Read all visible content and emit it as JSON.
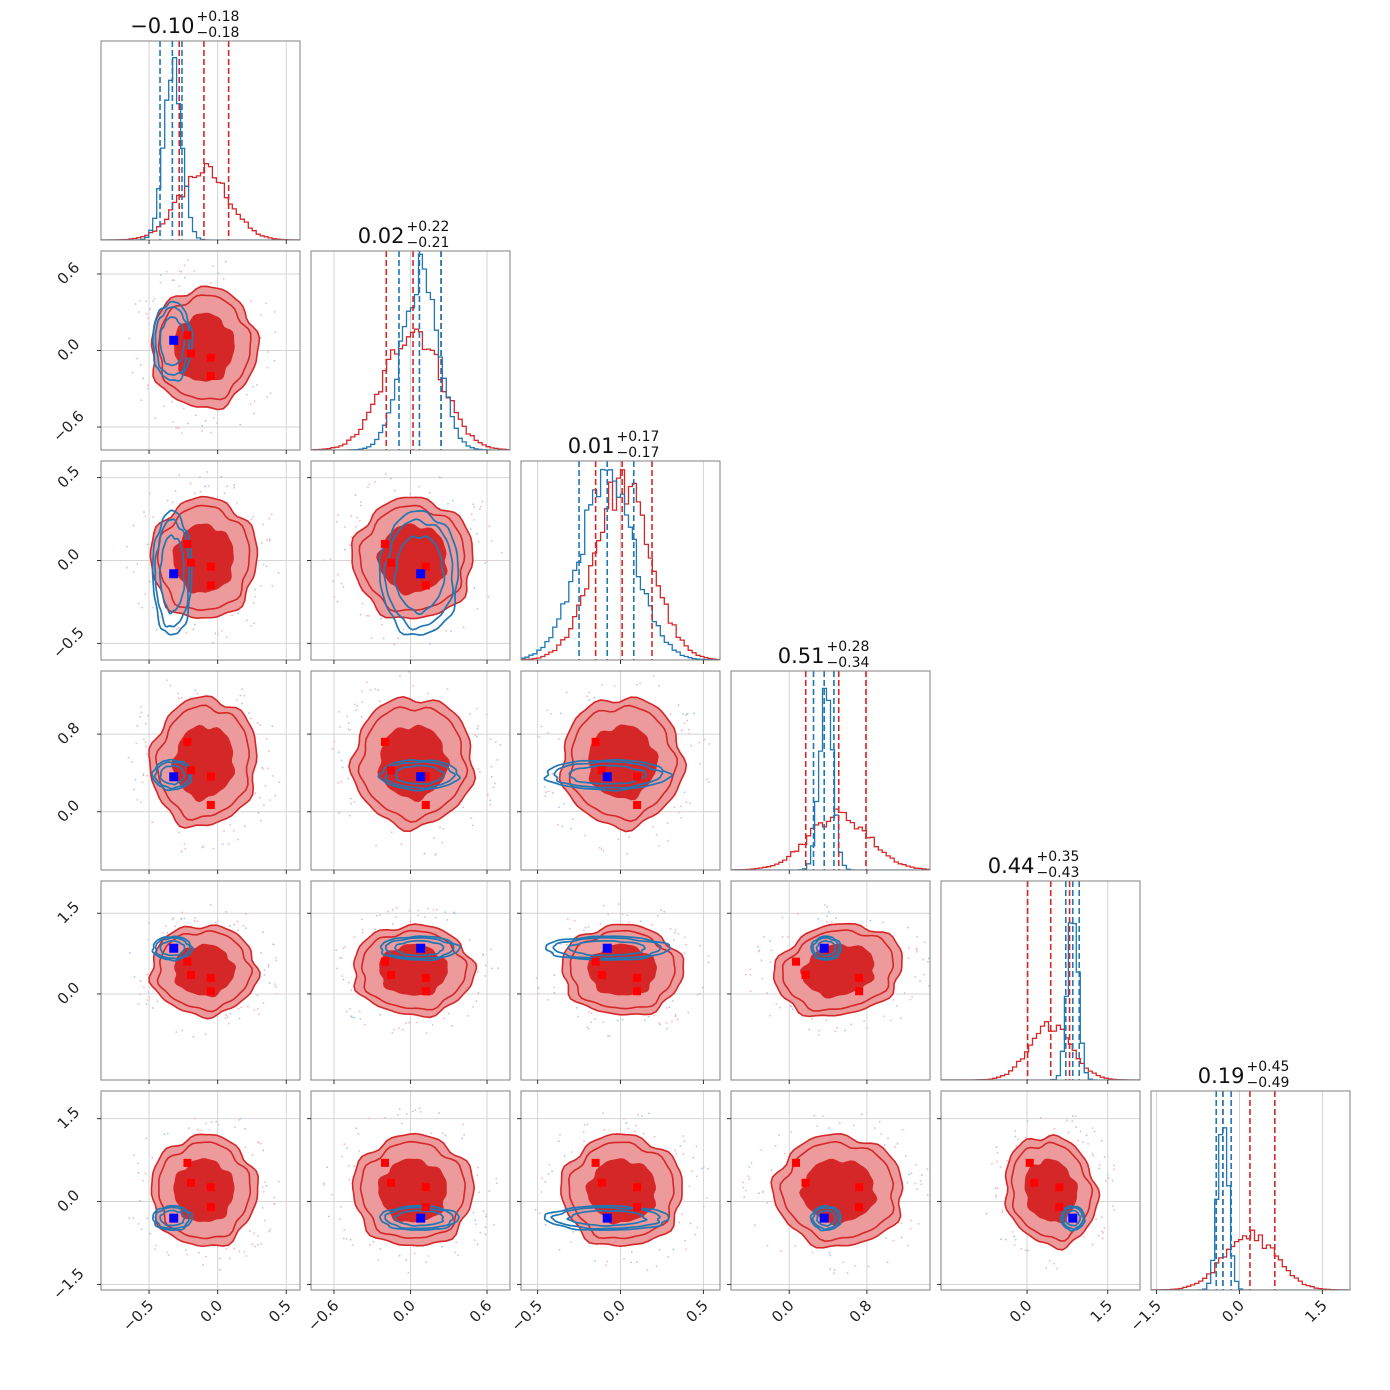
{
  "figure_type": "corner-plot",
  "colors": {
    "red_series": "#d62728",
    "red_fill_inner": "#d62728",
    "red_fill_outer": "#ec9a9b",
    "blue_series": "#1f77b4",
    "red_marker": "#ff0000",
    "blue_marker": "#0000ff"
  },
  "chart_data": {
    "type": "corner",
    "grid": true,
    "series": [
      {
        "color": "#d62728",
        "style": "filled-contour-and-histogram"
      },
      {
        "color": "#1f77b4",
        "style": "line-contour-and-histogram"
      }
    ],
    "parameters": [
      {
        "index": 0,
        "title_value": "−0.10",
        "title_plus": "+0.18",
        "title_minus": "−0.18",
        "range": [
          -0.85,
          0.6
        ],
        "ticks": [
          -0.5,
          0.0,
          0.5
        ],
        "tick_labels": [
          "−0.5",
          "0.0",
          "0.5"
        ],
        "red_hist": {
          "mean": -0.1,
          "sd": 0.18,
          "quantiles": [
            -0.28,
            -0.1,
            0.08
          ]
        },
        "blue_hist": {
          "mean": -0.33,
          "sd": 0.065,
          "quantiles": [
            -0.42,
            -0.33,
            -0.26
          ]
        },
        "truth_red": [
          -0.22,
          -0.05
        ],
        "truth_blue": -0.32
      },
      {
        "index": 1,
        "title_value": "0.02",
        "title_plus": "+0.22",
        "title_minus": "−0.21",
        "range": [
          -0.78,
          0.78
        ],
        "ticks": [
          -0.6,
          0.0,
          0.6
        ],
        "tick_labels": [
          "−0.6",
          "0.0",
          "0.6"
        ],
        "red_hist": {
          "mean": 0.02,
          "sd": 0.22,
          "quantiles": [
            -0.19,
            0.02,
            0.24
          ]
        },
        "blue_hist": {
          "mean": 0.07,
          "sd": 0.14,
          "quantiles": [
            -0.09,
            0.07,
            0.24
          ]
        },
        "truth_red": [
          -0.2,
          0.12
        ],
        "truth_blue": 0.08
      },
      {
        "index": 2,
        "title_value": "0.01",
        "title_plus": "+0.17",
        "title_minus": "−0.17",
        "range": [
          -0.6,
          0.6
        ],
        "ticks": [
          -0.5,
          0.0,
          0.5
        ],
        "tick_labels": [
          "−0.5",
          "0.0",
          "0.5"
        ],
        "red_hist": {
          "mean": 0.01,
          "sd": 0.17,
          "quantiles": [
            -0.15,
            0.01,
            0.19
          ]
        },
        "blue_hist": {
          "mean": -0.08,
          "sd": 0.17,
          "quantiles": [
            -0.25,
            -0.08,
            0.08
          ]
        },
        "truth_red": [
          -0.15,
          0.1
        ],
        "truth_blue": -0.08
      },
      {
        "index": 3,
        "title_value": "0.51",
        "title_plus": "+0.28",
        "title_minus": "−0.34",
        "range": [
          -0.6,
          1.45
        ],
        "ticks": [
          0.0,
          0.8
        ],
        "tick_labels": [
          "0.0",
          "0.8"
        ],
        "red_hist": {
          "mean": 0.51,
          "sd": 0.31,
          "quantiles": [
            0.17,
            0.51,
            0.79
          ]
        },
        "blue_hist": {
          "mean": 0.38,
          "sd": 0.07,
          "quantiles": [
            0.25,
            0.36,
            0.46
          ]
        },
        "truth_red": [
          0.07,
          0.72
        ],
        "truth_blue": 0.36
      },
      {
        "index": 4,
        "title_value": "0.44",
        "title_plus": "+0.35",
        "title_minus": "−0.43",
        "range": [
          -1.6,
          2.1
        ],
        "ticks": [
          0.0,
          1.5
        ],
        "tick_labels": [
          "0.0",
          "1.5"
        ],
        "red_hist": {
          "mean": 0.44,
          "sd": 0.39,
          "quantiles": [
            0.01,
            0.44,
            0.79
          ]
        },
        "blue_hist": {
          "mean": 0.85,
          "sd": 0.1,
          "quantiles": [
            0.72,
            0.85,
            0.97
          ]
        },
        "truth_red": [
          0.05,
          0.6
        ],
        "truth_blue": 0.85
      },
      {
        "index": 5,
        "title_value": "0.19",
        "title_plus": "+0.45",
        "title_minus": "−0.49",
        "range": [
          -1.6,
          2.0
        ],
        "ticks": [
          -1.5,
          0.0,
          1.5
        ],
        "tick_labels": [
          "−1.5",
          "0.0",
          "1.5"
        ],
        "red_hist": {
          "mean": 0.19,
          "sd": 0.47,
          "quantiles": [
            -0.3,
            0.19,
            0.64
          ]
        },
        "blue_hist": {
          "mean": -0.3,
          "sd": 0.1,
          "quantiles": [
            -0.42,
            -0.3,
            -0.15
          ]
        },
        "truth_red": [
          -0.1,
          0.7
        ],
        "truth_blue": -0.3
      }
    ]
  }
}
